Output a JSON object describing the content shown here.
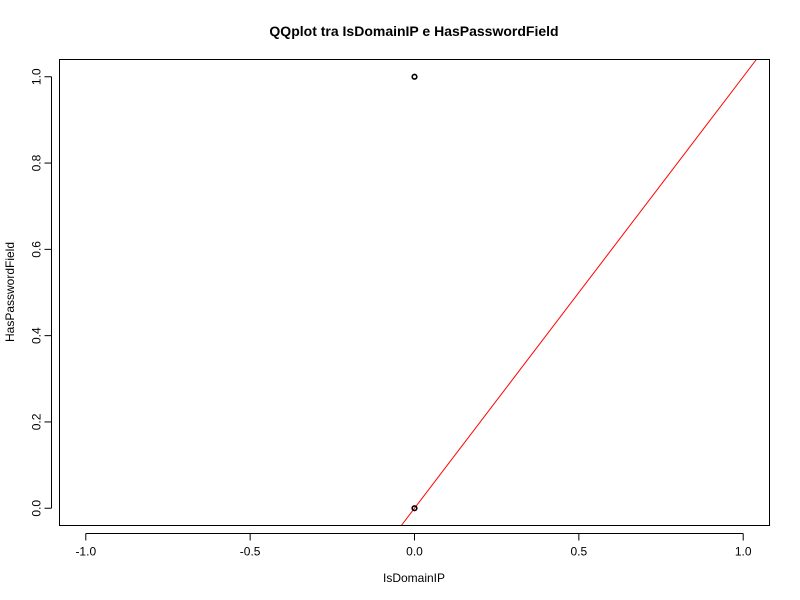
{
  "chart_data": {
    "type": "scatter",
    "title": "QQplot tra IsDomainIP e HasPasswordField",
    "xlabel": "IsDomainIP",
    "ylabel": "HasPasswordField",
    "xlim": [
      -1.08,
      1.08
    ],
    "ylim": [
      -0.04,
      1.04
    ],
    "x_ticks": [
      -1.0,
      -0.5,
      0.0,
      0.5,
      1.0
    ],
    "x_tick_labels": [
      "-1.0",
      "-0.5",
      "0.0",
      "0.5",
      "1.0"
    ],
    "y_ticks": [
      0.0,
      0.2,
      0.4,
      0.6,
      0.8,
      1.0
    ],
    "y_tick_labels": [
      "0.0",
      "0.2",
      "0.4",
      "0.6",
      "0.8",
      "1.0"
    ],
    "grid": false,
    "legend": "none",
    "series": [
      {
        "points": [
          {
            "x": 0.0,
            "y": 1.0
          },
          {
            "x": 0.0,
            "y": 0.0
          }
        ],
        "color": "#000000",
        "marker": "open-circle"
      }
    ],
    "reference_line": {
      "slope": 1,
      "intercept": 0,
      "color": "#ff0000"
    }
  }
}
